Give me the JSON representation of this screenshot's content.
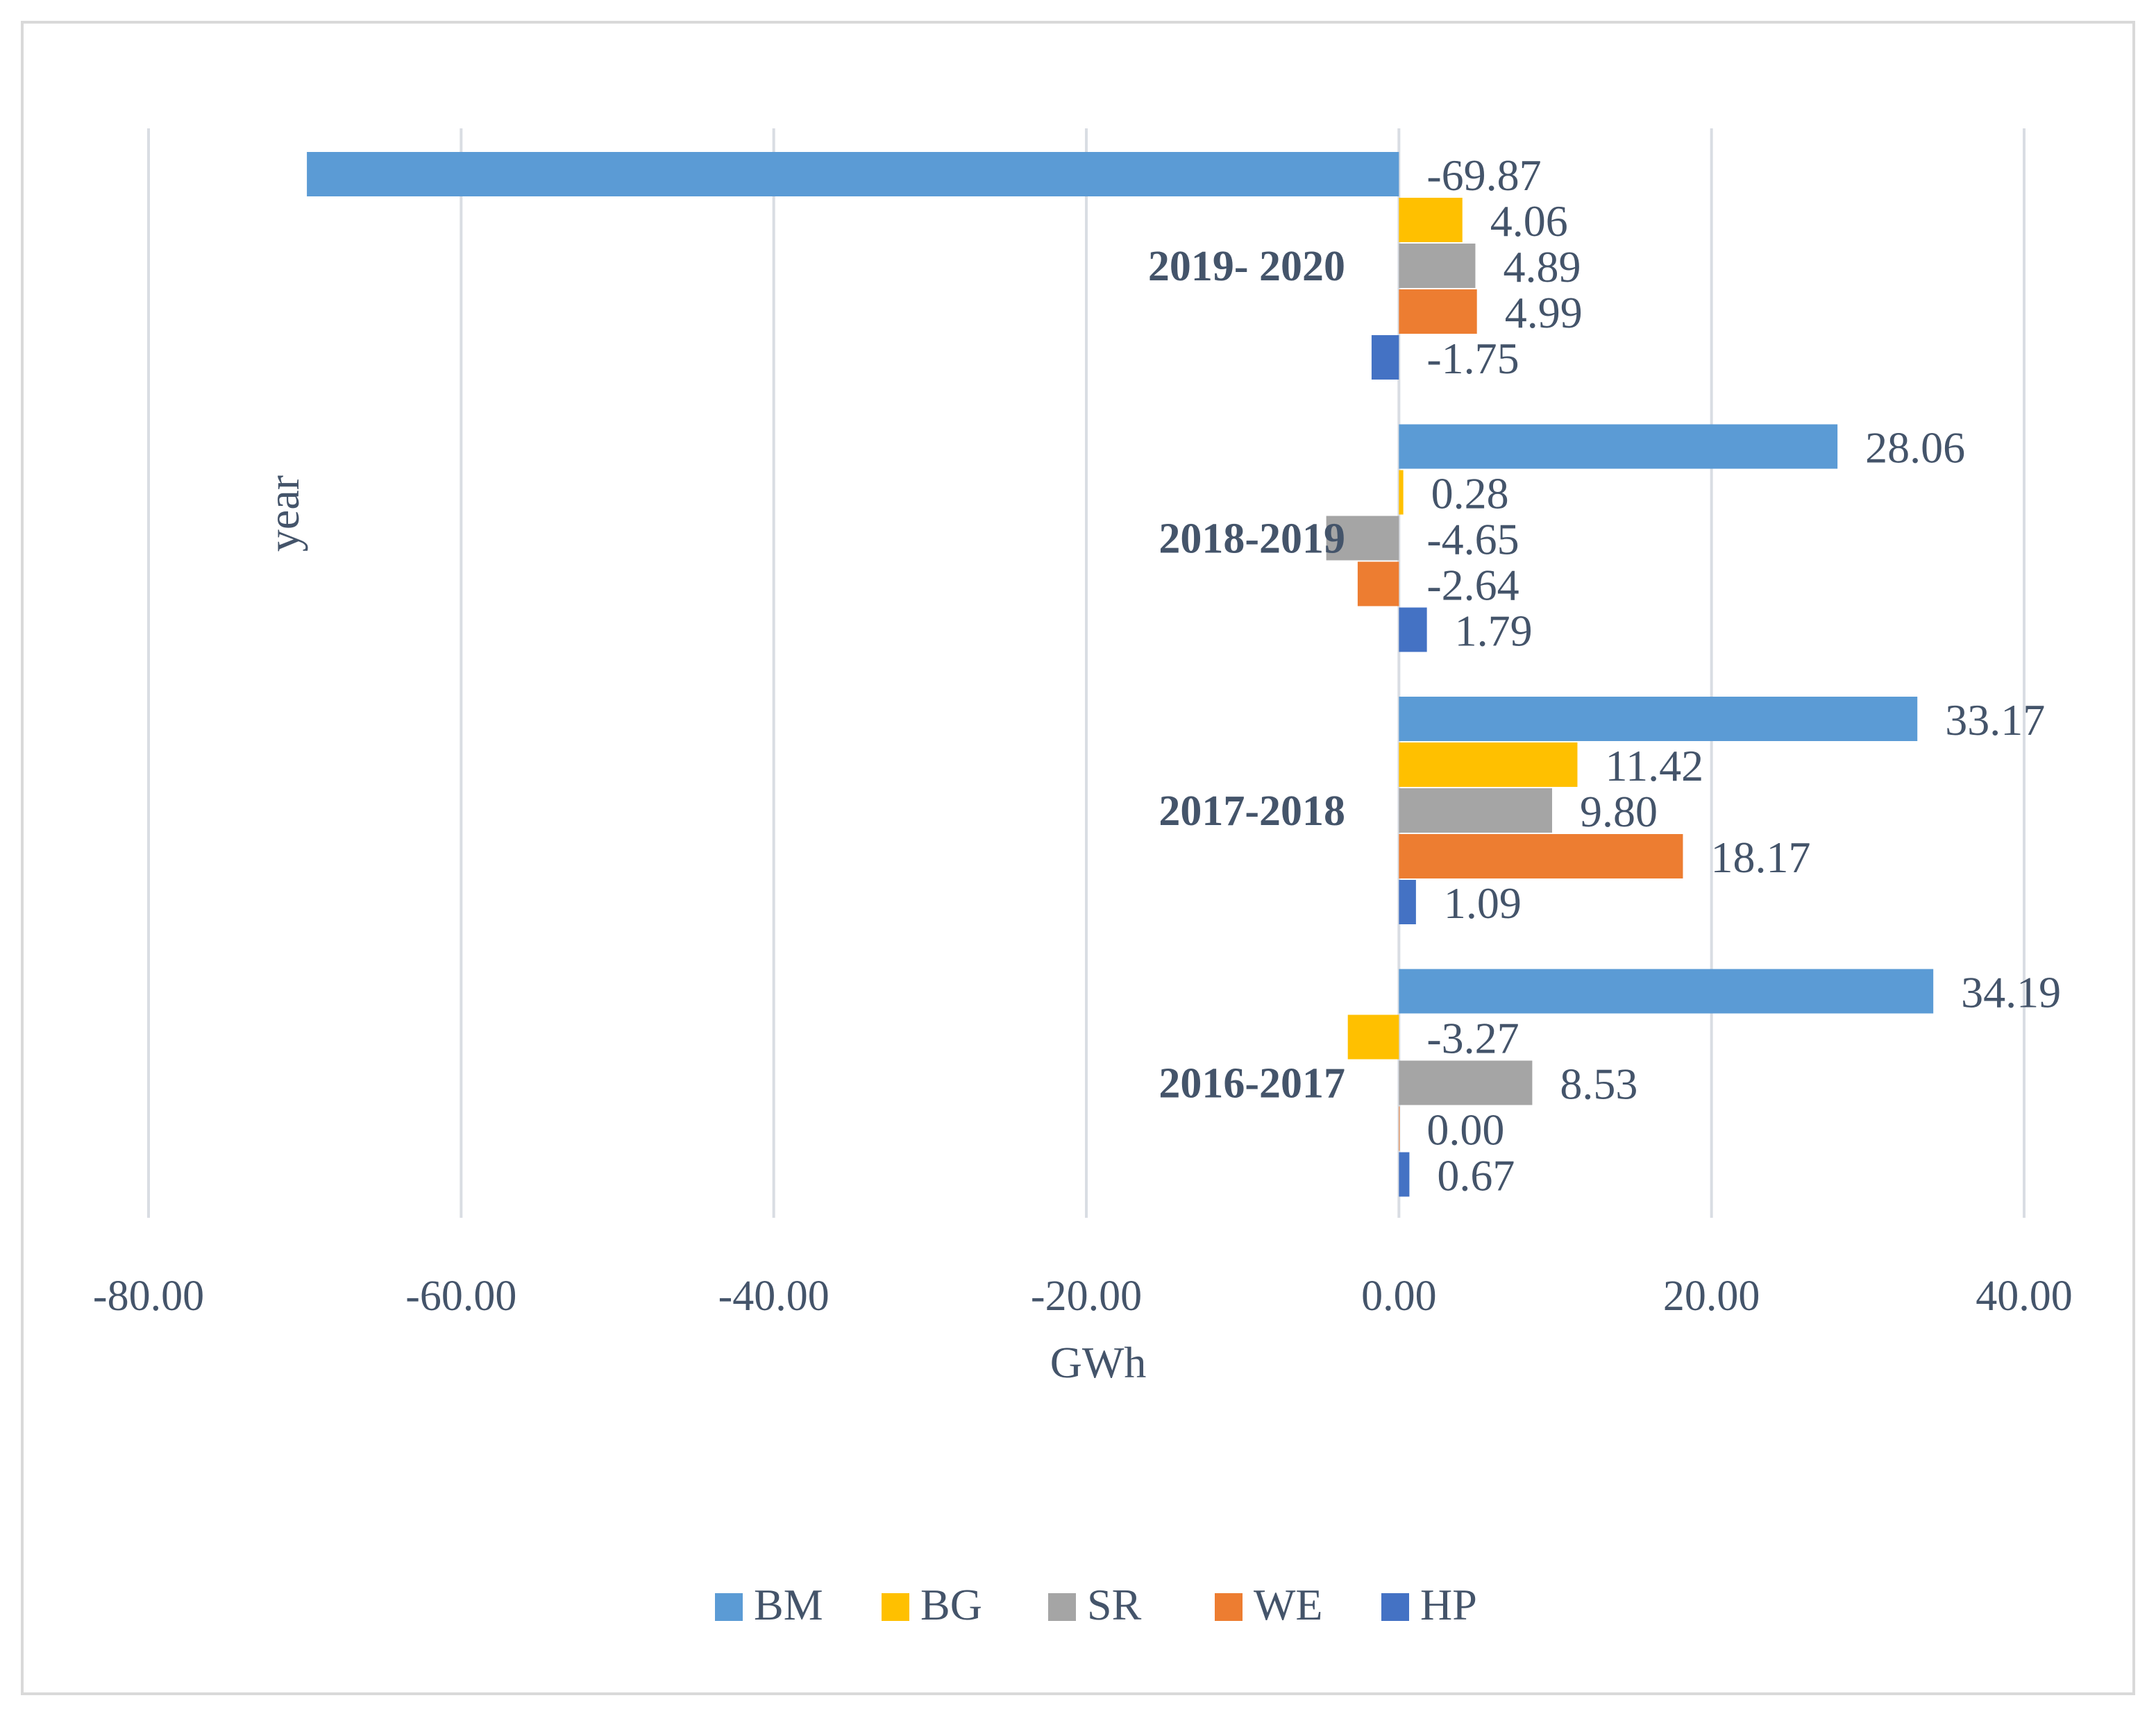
{
  "chart_data": {
    "type": "bar",
    "orientation": "horizontal",
    "categories": [
      "2019- 2020",
      "2018-2019",
      "2017-2018",
      "2016-2017"
    ],
    "series": [
      {
        "name": "BM",
        "color": "#5b9bd5",
        "values": [
          -69.87,
          28.06,
          33.17,
          34.19
        ],
        "labels": [
          "-69.87",
          "28.06",
          "33.17",
          "34.19"
        ]
      },
      {
        "name": "BG",
        "color": "#ffc000",
        "values": [
          4.06,
          0.28,
          11.42,
          -3.27
        ],
        "labels": [
          "4.06",
          "0.28",
          "11.42",
          "-3.27"
        ]
      },
      {
        "name": "SR",
        "color": "#a5a5a5",
        "values": [
          4.89,
          -4.65,
          9.8,
          8.53
        ],
        "labels": [
          "4.89",
          "-4.65",
          "9.80",
          "8.53"
        ]
      },
      {
        "name": "WE",
        "color": "#ed7d31",
        "values": [
          4.99,
          -2.64,
          18.17,
          0.0
        ],
        "labels": [
          "4.99",
          "-2.64",
          "18.17",
          "0.00"
        ]
      },
      {
        "name": "HP",
        "color": "#4472c4",
        "values": [
          -1.75,
          1.79,
          1.09,
          0.67
        ],
        "labels": [
          "-1.75",
          "1.79",
          "1.09",
          "0.67"
        ]
      }
    ],
    "xlim": [
      -80,
      40
    ],
    "xticks": [
      -80,
      -60,
      -40,
      -20,
      0,
      20,
      40
    ],
    "xtick_labels": [
      "-80.00",
      "-60.00",
      "-40.00",
      "-20.00",
      "0.00",
      "20.00",
      "40.00"
    ],
    "xlabel": "GWh",
    "ylabel": "year",
    "grid": true,
    "legend": "bottom"
  }
}
